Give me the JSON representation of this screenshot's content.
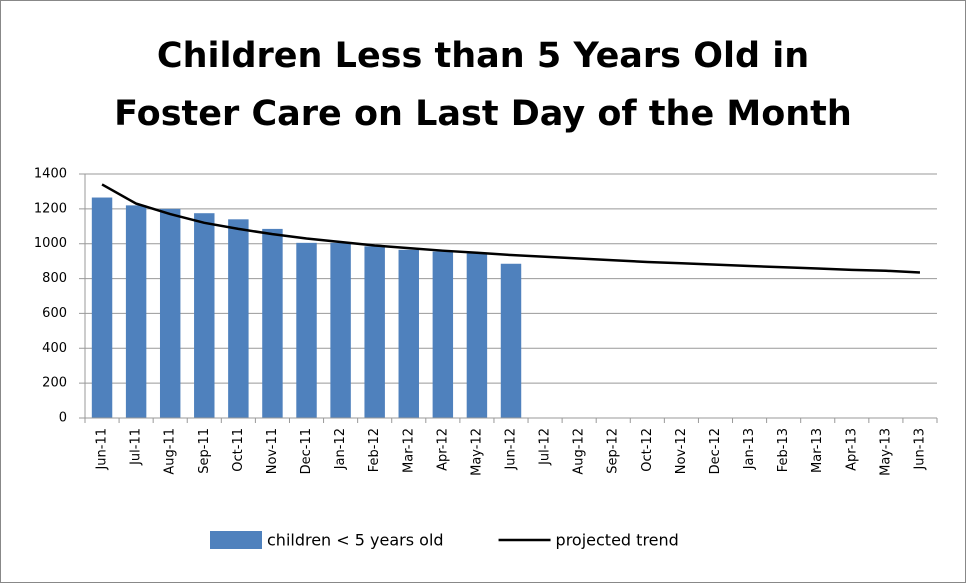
{
  "chart_data": {
    "type": "bar_line",
    "title": [
      "Children Less than 5 Years Old in",
      "Foster Care on Last Day of the Month"
    ],
    "categories": [
      "Jun-11",
      "Jul-11",
      "Aug-11",
      "Sep-11",
      "Oct-11",
      "Nov-11",
      "Dec-11",
      "Jan-12",
      "Feb-12",
      "Mar-12",
      "Apr-12",
      "May-12",
      "Jun-12",
      "Jul-12",
      "Aug-12",
      "Sep-12",
      "Oct-12",
      "Nov-12",
      "Dec-12",
      "Jan-13",
      "Feb-13",
      "Mar-13",
      "Apr-13",
      "May-13",
      "Jun-13"
    ],
    "series": [
      {
        "name": "children < 5 years old",
        "type": "bar",
        "color": "#4f81bd",
        "values": [
          1265,
          1220,
          1200,
          1175,
          1140,
          1085,
          1005,
          1005,
          985,
          965,
          955,
          945,
          885,
          null,
          null,
          null,
          null,
          null,
          null,
          null,
          null,
          null,
          null,
          null,
          null
        ]
      },
      {
        "name": "projected trend",
        "type": "line",
        "color": "#000000",
        "values": [
          1340,
          1230,
          1170,
          1120,
          1085,
          1055,
          1030,
          1010,
          990,
          975,
          960,
          948,
          935,
          925,
          915,
          905,
          895,
          888,
          880,
          872,
          865,
          858,
          850,
          845,
          835
        ]
      }
    ],
    "ylim": [
      0,
      1400
    ],
    "yticks": [
      0,
      200,
      400,
      600,
      800,
      1000,
      1200,
      1400
    ],
    "grid": true,
    "legend": "bottom"
  }
}
